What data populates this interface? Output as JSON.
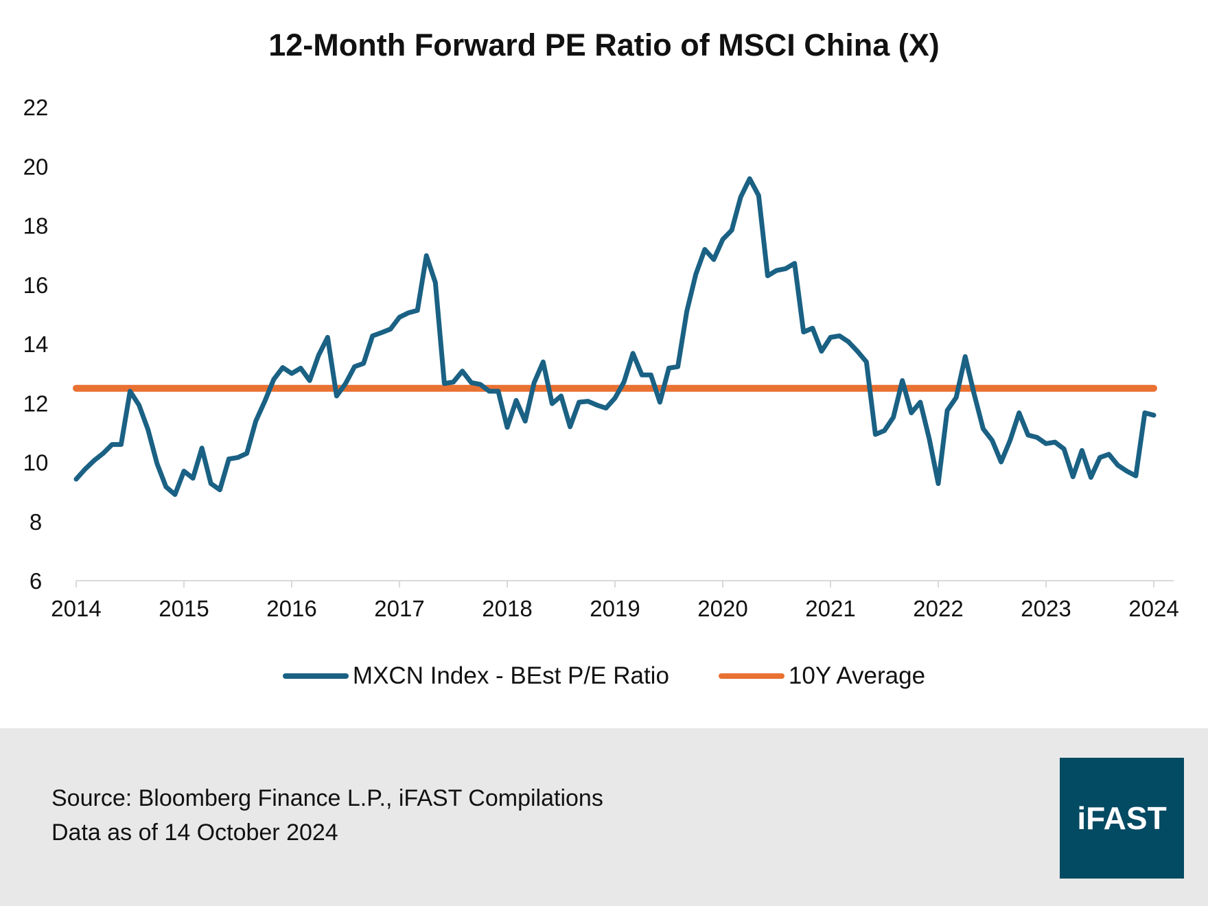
{
  "chart_data": {
    "type": "line",
    "title": "12-Month Forward PE Ratio of MSCI China (X)",
    "xlabel": "",
    "ylabel": "",
    "xlim": [
      2014,
      2024
    ],
    "ylim": [
      6,
      22
    ],
    "x_ticks": [
      "2014",
      "2015",
      "2016",
      "2017",
      "2018",
      "2019",
      "2020",
      "2021",
      "2022",
      "2023",
      "2024"
    ],
    "y_ticks": [
      6,
      8,
      10,
      12,
      14,
      16,
      18,
      20,
      22
    ],
    "grid": false,
    "legend_position": "bottom",
    "x": [
      "2014-01",
      "2014-02",
      "2014-03",
      "2014-04",
      "2014-05",
      "2014-06",
      "2014-07",
      "2014-08",
      "2014-09",
      "2014-10",
      "2014-11",
      "2014-12",
      "2015-01",
      "2015-02",
      "2015-03",
      "2015-04",
      "2015-05",
      "2015-06",
      "2015-07",
      "2015-08",
      "2015-09",
      "2015-10",
      "2015-11",
      "2015-12",
      "2016-01",
      "2016-02",
      "2016-03",
      "2016-04",
      "2016-05",
      "2016-06",
      "2016-07",
      "2016-08",
      "2016-09",
      "2016-10",
      "2016-11",
      "2016-12",
      "2017-01",
      "2017-02",
      "2017-03",
      "2017-04",
      "2017-05",
      "2017-06",
      "2017-07",
      "2017-08",
      "2017-09",
      "2017-10",
      "2017-11",
      "2017-12",
      "2018-01",
      "2018-02",
      "2018-03",
      "2018-04",
      "2018-05",
      "2018-06",
      "2018-07",
      "2018-08",
      "2018-09",
      "2018-10",
      "2018-11",
      "2018-12",
      "2019-01",
      "2019-02",
      "2019-03",
      "2019-04",
      "2019-05",
      "2019-06",
      "2019-07",
      "2019-08",
      "2019-09",
      "2019-10",
      "2019-11",
      "2019-12",
      "2020-01",
      "2020-02",
      "2020-03",
      "2020-04",
      "2020-05",
      "2020-06",
      "2020-07",
      "2020-08",
      "2020-09",
      "2020-10",
      "2020-11",
      "2020-12",
      "2021-01",
      "2021-02",
      "2021-03",
      "2021-04",
      "2021-05",
      "2021-06",
      "2021-07",
      "2021-08",
      "2021-09",
      "2021-10",
      "2021-11",
      "2021-12",
      "2022-01",
      "2022-02",
      "2022-03",
      "2022-04",
      "2022-05",
      "2022-06",
      "2022-07",
      "2022-08",
      "2022-09",
      "2022-10",
      "2022-11",
      "2022-12",
      "2023-01",
      "2023-02",
      "2023-03",
      "2023-04",
      "2023-05",
      "2023-06",
      "2023-07",
      "2023-08",
      "2023-09",
      "2023-10",
      "2023-11",
      "2023-12",
      "2024-01"
    ],
    "series": [
      {
        "name": "MXCN Index - BEst P/E Ratio",
        "color": "#1a6184",
        "values": [
          9.43,
          9.77,
          10.06,
          10.3,
          10.6,
          10.6,
          12.4,
          11.93,
          11.1,
          9.96,
          9.17,
          8.91,
          9.7,
          9.46,
          10.48,
          9.28,
          9.07,
          10.11,
          10.16,
          10.3,
          11.39,
          12.06,
          12.8,
          13.2,
          13.0,
          13.18,
          12.76,
          13.62,
          14.22,
          12.24,
          12.66,
          13.23,
          13.34,
          14.27,
          14.38,
          14.5,
          14.9,
          15.05,
          15.13,
          16.98,
          16.07,
          12.66,
          12.71,
          13.08,
          12.69,
          12.63,
          12.4,
          12.4,
          11.18,
          12.09,
          11.39,
          12.69,
          13.39,
          11.98,
          12.24,
          11.2,
          12.03,
          12.06,
          11.93,
          11.83,
          12.17,
          12.71,
          13.68,
          12.95,
          12.95,
          12.03,
          13.18,
          13.23,
          15.1,
          16.35,
          17.19,
          16.85,
          17.53,
          17.84,
          18.96,
          19.58,
          19.01,
          16.3,
          16.48,
          16.54,
          16.72,
          14.4,
          14.53,
          13.75,
          14.22,
          14.27,
          14.07,
          13.75,
          13.39,
          10.94,
          11.07,
          11.52,
          12.76,
          11.67,
          12.03,
          10.79,
          9.28,
          11.75,
          12.19,
          13.57,
          12.3,
          11.13,
          10.74,
          10.01,
          10.74,
          11.67,
          10.92,
          10.84,
          10.63,
          10.68,
          10.45,
          9.51,
          10.4,
          9.49,
          10.16,
          10.27,
          9.9,
          9.7,
          9.54,
          11.67,
          11.59
        ]
      },
      {
        "name": "10Y Average",
        "color": "#e97132",
        "value": 12.5
      }
    ]
  },
  "footer": {
    "source": "Source: Bloomberg Finance L.P., iFAST Compilations",
    "data_date": "Data as of 14 October 2024",
    "logo_text": "iFAST",
    "background": "#e8e8e8",
    "logo_color": "#034a63"
  }
}
